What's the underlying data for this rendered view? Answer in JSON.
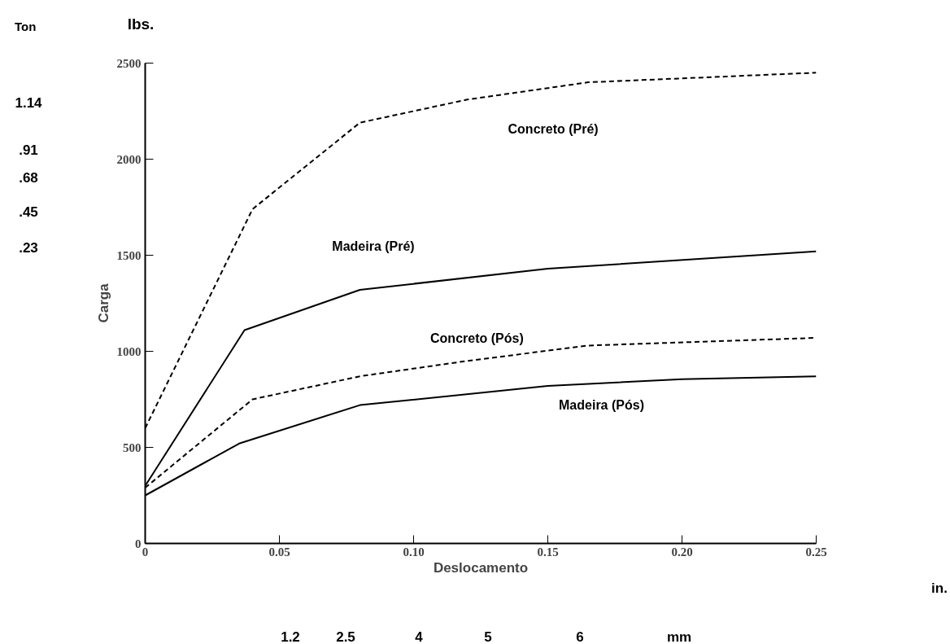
{
  "chart_data": {
    "type": "line",
    "xlabel": "Deslocamento",
    "ylabel": "Carga",
    "xlim": [
      0,
      0.25
    ],
    "ylim": [
      0,
      2500
    ],
    "xticks": [
      0,
      0.05,
      {
        "value": 0.1,
        "label": "0.10"
      },
      0.15,
      {
        "value": 0.2,
        "label": "0.20"
      },
      0.25
    ],
    "yticks": [
      0,
      500,
      1000,
      1500,
      2000,
      2500
    ],
    "grid": false,
    "legend": false,
    "marker": "none",
    "series": [
      {
        "name": "Concreto (Pré)",
        "color": "#000000",
        "line_style": "dashed",
        "x": [
          0,
          0.04,
          0.08,
          0.12,
          0.165,
          0.25
        ],
        "values": [
          600,
          1740,
          2190,
          2310,
          2400,
          2450
        ]
      },
      {
        "name": "Madeira (Pré)",
        "color": "#000000",
        "line_style": "solid",
        "x": [
          0,
          0.037,
          0.08,
          0.15,
          0.25
        ],
        "values": [
          300,
          1110,
          1320,
          1430,
          1520
        ]
      },
      {
        "name": "Concreto (Pós)",
        "color": "#000000",
        "line_style": "dashed",
        "x": [
          0,
          0.04,
          0.08,
          0.12,
          0.165,
          0.25
        ],
        "values": [
          290,
          750,
          870,
          950,
          1030,
          1070
        ]
      },
      {
        "name": "Madeira (Pós)",
        "color": "#000000",
        "line_style": "solid",
        "x": [
          0,
          0.035,
          0.08,
          0.15,
          0.2,
          0.25
        ],
        "values": [
          250,
          520,
          720,
          820,
          855,
          870
        ]
      }
    ],
    "annotations": [
      "Ton",
      "1.14",
      ".91",
      ".68",
      ".45",
      ".23",
      "lbs.",
      "in.",
      "1.2",
      "2.5",
      "4",
      "5",
      "6",
      "mm"
    ]
  }
}
